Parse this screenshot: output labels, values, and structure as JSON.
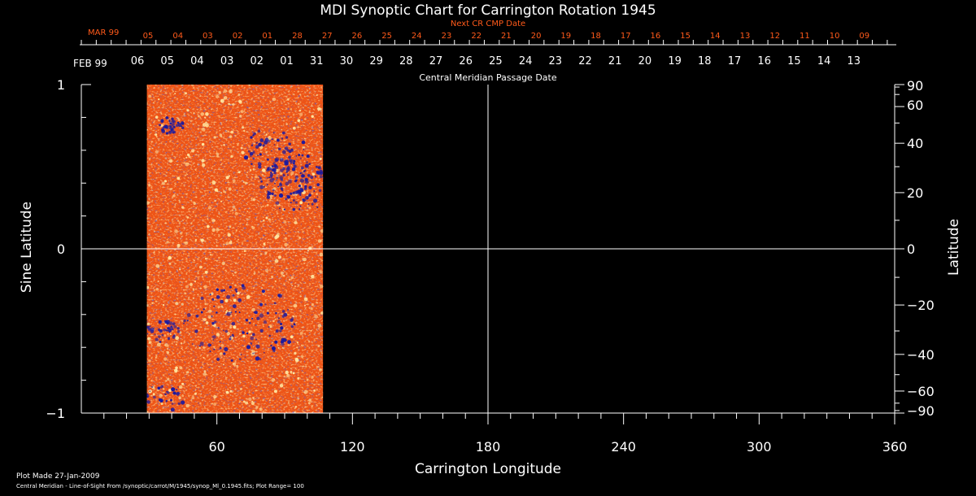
{
  "chart_data": {
    "type": "heatmap",
    "title": "MDI Synoptic Chart for Carrington Rotation 1945",
    "xlabel": "Carrington Longitude",
    "ylabel_left": "Sine Latitude",
    "ylabel_right": "Latitude",
    "xlim": [
      0,
      360
    ],
    "ylim": [
      -1,
      1
    ],
    "x_major_ticks": [
      60,
      120,
      180,
      240,
      300,
      360
    ],
    "x_minor_step": 10,
    "left_ticks": [
      {
        "value": 1,
        "label": "1"
      },
      {
        "value": 0,
        "label": "0"
      },
      {
        "value": -1,
        "label": "−1"
      }
    ],
    "left_minor_step": 0.2,
    "right_ticks": [
      {
        "lat": 90,
        "label": "90"
      },
      {
        "lat": 60,
        "label": "60"
      },
      {
        "lat": 40,
        "label": "40"
      },
      {
        "lat": 20,
        "label": "20"
      },
      {
        "lat": 0,
        "label": "0"
      },
      {
        "lat": -20,
        "label": "−20"
      },
      {
        "lat": -40,
        "label": "−40"
      },
      {
        "lat": -60,
        "label": "−60"
      },
      {
        "lat": -90,
        "label": "−90"
      }
    ],
    "right_minor_step": 10,
    "guide_lines": {
      "x": 180,
      "y": 0
    },
    "data_coverage": {
      "lon_start": 29,
      "lon_end": 107
    },
    "colors": {
      "axis": "#ffffff",
      "orange_text": "#ff5a1a",
      "map_base": "#e8400e",
      "positive_flux": "#ffe6a0",
      "negative_flux": "#1a1aa0"
    }
  },
  "cmp_dates": {
    "next_title": "Next CR CMP Date",
    "next_month": "MAR 99",
    "next_days": [
      "05",
      "04",
      "03",
      "02",
      "01",
      "28",
      "27",
      "26",
      "25",
      "24",
      "23",
      "22",
      "21",
      "20",
      "19",
      "18",
      "17",
      "16",
      "15",
      "14",
      "13",
      "12",
      "11",
      "10",
      "09"
    ],
    "current_month": "FEB 99",
    "current_days": [
      "06",
      "05",
      "04",
      "03",
      "02",
      "01",
      "31",
      "30",
      "29",
      "28",
      "27",
      "26",
      "25",
      "24",
      "23",
      "22",
      "21",
      "20",
      "19",
      "18",
      "17",
      "16",
      "15",
      "14",
      "13"
    ],
    "current_title": "Central Meridian Passage Date"
  },
  "footer": {
    "plot_made": "Plot Made 27-Jan-2009",
    "source": "Central Meridian - Line-of-Sight From /synoptic/carrot/M/1945/synop_Ml_0.1945.fits; Plot Range=  100"
  }
}
